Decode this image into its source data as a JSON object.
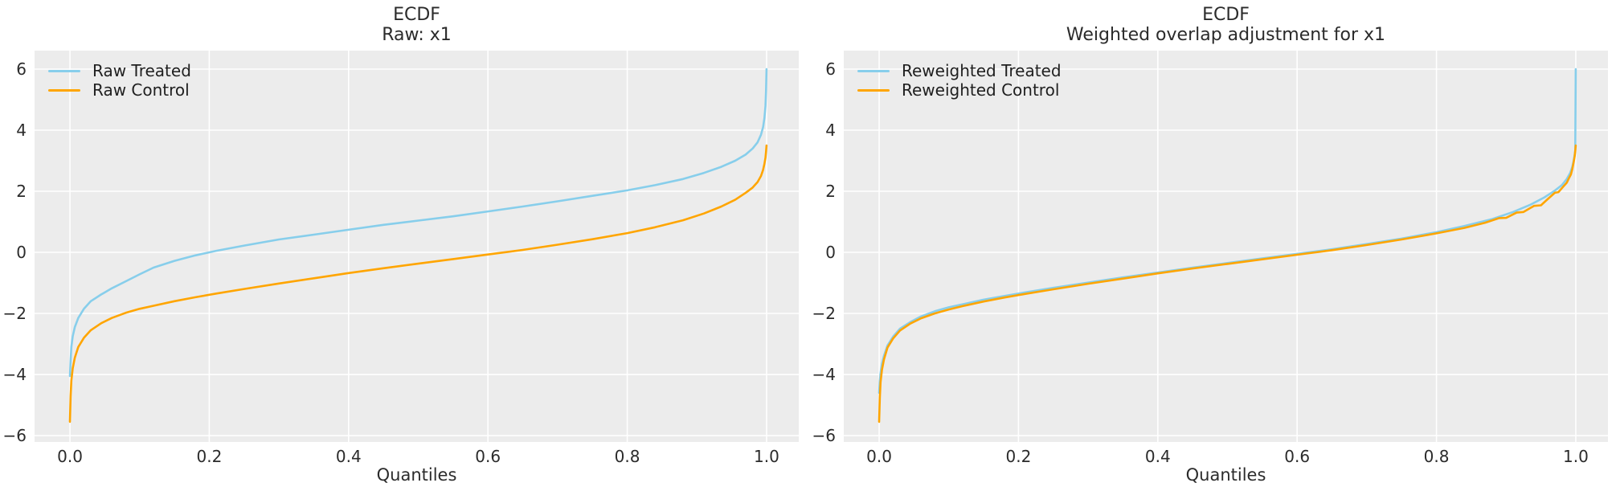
{
  "figure": {
    "background": "#ffffff",
    "axes_background": "#ececec",
    "grid_color": "#ffffff",
    "text_color": "#2b2b2b"
  },
  "chart_data": [
    {
      "type": "line",
      "title": "ECDF\nRaw: x1",
      "xlabel": "Quantiles",
      "ylabel": "",
      "xlim": [
        -0.0508,
        1.0462
      ],
      "ylim": [
        -6.21,
        6.605
      ],
      "xticks": [
        0.0,
        0.2,
        0.4,
        0.6,
        0.8,
        1.0
      ],
      "yticks": [
        -6,
        -4,
        -2,
        0,
        2,
        4,
        6
      ],
      "grid": true,
      "legend_position": "upper left",
      "series": [
        {
          "name": "Raw Treated",
          "color": "#87CEEB",
          "points": [
            [
              0.0,
              -4.05
            ],
            [
              0.001,
              -3.55
            ],
            [
              0.002,
              -3.1
            ],
            [
              0.004,
              -2.75
            ],
            [
              0.007,
              -2.45
            ],
            [
              0.012,
              -2.15
            ],
            [
              0.02,
              -1.85
            ],
            [
              0.03,
              -1.6
            ],
            [
              0.045,
              -1.38
            ],
            [
              0.06,
              -1.18
            ],
            [
              0.08,
              -0.95
            ],
            [
              0.1,
              -0.72
            ],
            [
              0.12,
              -0.5
            ],
            [
              0.15,
              -0.28
            ],
            [
              0.18,
              -0.1
            ],
            [
              0.21,
              0.05
            ],
            [
              0.25,
              0.22
            ],
            [
              0.3,
              0.42
            ],
            [
              0.35,
              0.58
            ],
            [
              0.4,
              0.74
            ],
            [
              0.45,
              0.9
            ],
            [
              0.5,
              1.04
            ],
            [
              0.55,
              1.18
            ],
            [
              0.6,
              1.34
            ],
            [
              0.65,
              1.5
            ],
            [
              0.7,
              1.67
            ],
            [
              0.75,
              1.85
            ],
            [
              0.8,
              2.03
            ],
            [
              0.84,
              2.2
            ],
            [
              0.88,
              2.4
            ],
            [
              0.91,
              2.6
            ],
            [
              0.935,
              2.8
            ],
            [
              0.955,
              3.0
            ],
            [
              0.97,
              3.2
            ],
            [
              0.98,
              3.4
            ],
            [
              0.987,
              3.6
            ],
            [
              0.992,
              3.85
            ],
            [
              0.995,
              4.1
            ],
            [
              0.997,
              4.4
            ],
            [
              0.9985,
              4.8
            ],
            [
              0.9993,
              5.3
            ],
            [
              1.0,
              6.0
            ]
          ]
        },
        {
          "name": "Raw Control",
          "color": "#FFA500",
          "points": [
            [
              0.0,
              -5.55
            ],
            [
              0.001,
              -4.7
            ],
            [
              0.002,
              -4.2
            ],
            [
              0.004,
              -3.8
            ],
            [
              0.007,
              -3.45
            ],
            [
              0.012,
              -3.1
            ],
            [
              0.02,
              -2.8
            ],
            [
              0.03,
              -2.55
            ],
            [
              0.045,
              -2.32
            ],
            [
              0.06,
              -2.15
            ],
            [
              0.08,
              -1.98
            ],
            [
              0.1,
              -1.85
            ],
            [
              0.12,
              -1.75
            ],
            [
              0.15,
              -1.6
            ],
            [
              0.18,
              -1.47
            ],
            [
              0.21,
              -1.35
            ],
            [
              0.25,
              -1.2
            ],
            [
              0.3,
              -1.02
            ],
            [
              0.35,
              -0.85
            ],
            [
              0.4,
              -0.68
            ],
            [
              0.45,
              -0.52
            ],
            [
              0.5,
              -0.37
            ],
            [
              0.55,
              -0.22
            ],
            [
              0.6,
              -0.07
            ],
            [
              0.65,
              0.08
            ],
            [
              0.7,
              0.25
            ],
            [
              0.75,
              0.43
            ],
            [
              0.8,
              0.63
            ],
            [
              0.84,
              0.82
            ],
            [
              0.88,
              1.05
            ],
            [
              0.91,
              1.27
            ],
            [
              0.935,
              1.5
            ],
            [
              0.955,
              1.72
            ],
            [
              0.97,
              1.95
            ],
            [
              0.98,
              2.12
            ],
            [
              0.987,
              2.3
            ],
            [
              0.992,
              2.5
            ],
            [
              0.995,
              2.7
            ],
            [
              0.997,
              2.9
            ],
            [
              0.9985,
              3.1
            ],
            [
              0.9993,
              3.3
            ],
            [
              1.0,
              3.5
            ]
          ]
        }
      ]
    },
    {
      "type": "line",
      "title": "ECDF\nWeighted overlap adjustment for x1",
      "xlabel": "Quantiles",
      "ylabel": "",
      "xlim": [
        -0.0508,
        1.0462
      ],
      "ylim": [
        -6.21,
        6.605
      ],
      "xticks": [
        0.0,
        0.2,
        0.4,
        0.6,
        0.8,
        1.0
      ],
      "yticks": [
        -6,
        -4,
        -2,
        0,
        2,
        4,
        6
      ],
      "grid": true,
      "legend_position": "upper left",
      "series": [
        {
          "name": "Reweighted Treated",
          "color": "#87CEEB",
          "points": [
            [
              0.0,
              -4.6
            ],
            [
              0.001,
              -4.2
            ],
            [
              0.002,
              -3.95
            ],
            [
              0.004,
              -3.65
            ],
            [
              0.007,
              -3.38
            ],
            [
              0.012,
              -3.05
            ],
            [
              0.02,
              -2.76
            ],
            [
              0.03,
              -2.5
            ],
            [
              0.045,
              -2.28
            ],
            [
              0.06,
              -2.1
            ],
            [
              0.08,
              -1.93
            ],
            [
              0.1,
              -1.8
            ],
            [
              0.12,
              -1.7
            ],
            [
              0.15,
              -1.55
            ],
            [
              0.18,
              -1.43
            ],
            [
              0.21,
              -1.31
            ],
            [
              0.25,
              -1.16
            ],
            [
              0.3,
              -0.99
            ],
            [
              0.35,
              -0.82
            ],
            [
              0.4,
              -0.66
            ],
            [
              0.45,
              -0.5
            ],
            [
              0.5,
              -0.35
            ],
            [
              0.55,
              -0.2
            ],
            [
              0.6,
              -0.05
            ],
            [
              0.65,
              0.1
            ],
            [
              0.7,
              0.27
            ],
            [
              0.75,
              0.45
            ],
            [
              0.8,
              0.66
            ],
            [
              0.84,
              0.86
            ],
            [
              0.88,
              1.09
            ],
            [
              0.91,
              1.32
            ],
            [
              0.935,
              1.56
            ],
            [
              0.955,
              1.8
            ],
            [
              0.97,
              2.02
            ],
            [
              0.98,
              2.2
            ],
            [
              0.987,
              2.4
            ],
            [
              0.992,
              2.6
            ],
            [
              0.995,
              2.8
            ],
            [
              0.997,
              3.0
            ],
            [
              0.9985,
              3.2
            ],
            [
              0.9993,
              3.35
            ],
            [
              1.0,
              6.0
            ]
          ]
        },
        {
          "name": "Reweighted Control",
          "color": "#FFA500",
          "points": [
            [
              0.0,
              -5.55
            ],
            [
              0.001,
              -4.75
            ],
            [
              0.002,
              -4.25
            ],
            [
              0.004,
              -3.85
            ],
            [
              0.007,
              -3.5
            ],
            [
              0.012,
              -3.12
            ],
            [
              0.02,
              -2.82
            ],
            [
              0.03,
              -2.56
            ],
            [
              0.045,
              -2.33
            ],
            [
              0.06,
              -2.16
            ],
            [
              0.08,
              -2.0
            ],
            [
              0.1,
              -1.87
            ],
            [
              0.12,
              -1.76
            ],
            [
              0.15,
              -1.61
            ],
            [
              0.18,
              -1.48
            ],
            [
              0.21,
              -1.36
            ],
            [
              0.25,
              -1.21
            ],
            [
              0.3,
              -1.03
            ],
            [
              0.35,
              -0.86
            ],
            [
              0.4,
              -0.69
            ],
            [
              0.45,
              -0.53
            ],
            [
              0.5,
              -0.38
            ],
            [
              0.55,
              -0.23
            ],
            [
              0.6,
              -0.08
            ],
            [
              0.65,
              0.07
            ],
            [
              0.7,
              0.24
            ],
            [
              0.75,
              0.42
            ],
            [
              0.8,
              0.62
            ],
            [
              0.84,
              0.8
            ],
            [
              0.87,
              0.97
            ],
            [
              0.89,
              1.12
            ],
            [
              0.9,
              1.13
            ],
            [
              0.915,
              1.3
            ],
            [
              0.925,
              1.32
            ],
            [
              0.94,
              1.52
            ],
            [
              0.95,
              1.54
            ],
            [
              0.96,
              1.75
            ],
            [
              0.97,
              1.95
            ],
            [
              0.975,
              1.97
            ],
            [
              0.982,
              2.15
            ],
            [
              0.987,
              2.28
            ],
            [
              0.99,
              2.42
            ],
            [
              0.993,
              2.55
            ],
            [
              0.995,
              2.72
            ],
            [
              0.997,
              2.95
            ],
            [
              0.9985,
              3.15
            ],
            [
              0.9993,
              3.32
            ],
            [
              1.0,
              3.5
            ]
          ]
        }
      ]
    }
  ]
}
